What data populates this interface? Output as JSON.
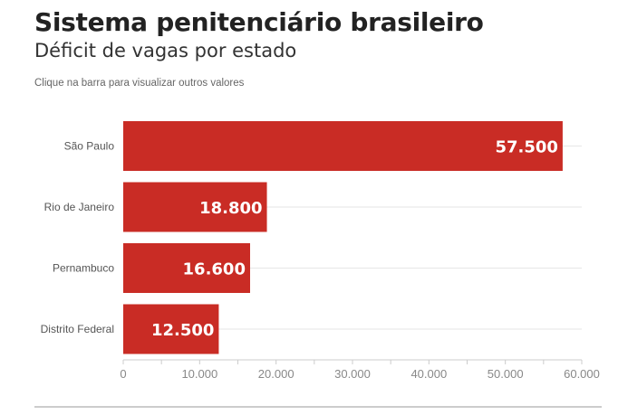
{
  "header": {
    "title": "Sistema penitenciário brasileiro",
    "subtitle": "Déficit de vagas por estado",
    "instruction": "Clique na barra para visualizar outros valores"
  },
  "colors": {
    "bar": "#c92c25",
    "grid": "#e6e6e6",
    "tick_label": "#888888",
    "category_label": "#555555",
    "value_label": "#ffffff"
  },
  "chart_data": {
    "type": "bar",
    "orientation": "horizontal",
    "title": "Sistema penitenciário brasileiro",
    "subtitle": "Déficit de vagas por estado",
    "categories": [
      "São Paulo",
      "Rio de Janeiro",
      "Pernambuco",
      "Distrito Federal"
    ],
    "values": [
      57500,
      18800,
      16600,
      12500
    ],
    "value_labels": [
      "57.500",
      "18.800",
      "16.600",
      "12.500"
    ],
    "xlim": [
      0,
      60000
    ],
    "x_ticks": [
      0,
      10000,
      20000,
      30000,
      40000,
      50000,
      60000
    ],
    "x_tick_labels": [
      "0",
      "10.000",
      "20.000",
      "30.000",
      "40.000",
      "50.000",
      "60.000"
    ],
    "xlabel": "",
    "ylabel": "",
    "grid": true
  }
}
